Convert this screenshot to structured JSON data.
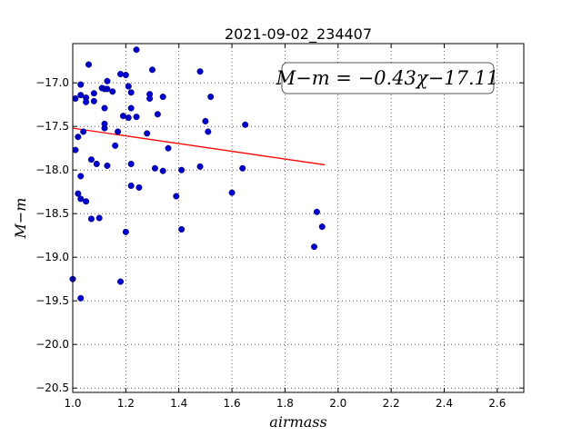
{
  "chart_data": {
    "type": "scatter",
    "title": "2021-09-02_234407",
    "xlabel": "airmass",
    "ylabel": "M−m",
    "annotation": "M−m = −0.43χ−17.11",
    "xlim": [
      1.0,
      2.7
    ],
    "ylim": [
      -20.55,
      -16.55
    ],
    "x_ticks": [
      "1.0",
      "1.2",
      "1.4",
      "1.6",
      "1.8",
      "2.0",
      "2.2",
      "2.4",
      "2.6"
    ],
    "x_tick_values": [
      1.0,
      1.2,
      1.4,
      1.6,
      1.8,
      2.0,
      2.2,
      2.4,
      2.6
    ],
    "y_ticks": [
      "−17.0",
      "−17.5",
      "−18.0",
      "−18.5",
      "−19.0",
      "−19.5",
      "−20.0",
      "−20.5"
    ],
    "y_tick_values": [
      -17.0,
      -17.5,
      -18.0,
      -18.5,
      -19.0,
      -19.5,
      -20.0,
      -20.5
    ],
    "grid": true,
    "point_color": "#0000cc",
    "fit_color": "#ff0000",
    "fit_line": {
      "x": [
        1.0,
        1.95
      ],
      "y": [
        -17.52,
        -17.94
      ]
    },
    "points": [
      {
        "x": 1.0,
        "y": -19.25
      },
      {
        "x": 1.01,
        "y": -17.18
      },
      {
        "x": 1.01,
        "y": -17.77
      },
      {
        "x": 1.02,
        "y": -17.62
      },
      {
        "x": 1.02,
        "y": -18.27
      },
      {
        "x": 1.03,
        "y": -17.02
      },
      {
        "x": 1.03,
        "y": -17.14
      },
      {
        "x": 1.03,
        "y": -18.07
      },
      {
        "x": 1.03,
        "y": -18.33
      },
      {
        "x": 1.03,
        "y": -19.47
      },
      {
        "x": 1.04,
        "y": -17.56
      },
      {
        "x": 1.05,
        "y": -17.17
      },
      {
        "x": 1.05,
        "y": -17.22
      },
      {
        "x": 1.05,
        "y": -18.36
      },
      {
        "x": 1.06,
        "y": -16.79
      },
      {
        "x": 1.07,
        "y": -17.88
      },
      {
        "x": 1.07,
        "y": -18.56
      },
      {
        "x": 1.08,
        "y": -17.21
      },
      {
        "x": 1.08,
        "y": -17.12
      },
      {
        "x": 1.09,
        "y": -17.93
      },
      {
        "x": 1.1,
        "y": -18.55
      },
      {
        "x": 1.11,
        "y": -17.06
      },
      {
        "x": 1.12,
        "y": -17.07
      },
      {
        "x": 1.12,
        "y": -17.29
      },
      {
        "x": 1.12,
        "y": -17.52
      },
      {
        "x": 1.12,
        "y": -17.47
      },
      {
        "x": 1.13,
        "y": -16.98
      },
      {
        "x": 1.13,
        "y": -17.07
      },
      {
        "x": 1.13,
        "y": -17.95
      },
      {
        "x": 1.15,
        "y": -17.1
      },
      {
        "x": 1.16,
        "y": -17.72
      },
      {
        "x": 1.17,
        "y": -17.56
      },
      {
        "x": 1.18,
        "y": -16.9
      },
      {
        "x": 1.18,
        "y": -19.28
      },
      {
        "x": 1.19,
        "y": -17.38
      },
      {
        "x": 1.2,
        "y": -16.91
      },
      {
        "x": 1.2,
        "y": -18.71
      },
      {
        "x": 1.21,
        "y": -17.4
      },
      {
        "x": 1.21,
        "y": -17.04
      },
      {
        "x": 1.22,
        "y": -17.11
      },
      {
        "x": 1.22,
        "y": -17.29
      },
      {
        "x": 1.22,
        "y": -17.93
      },
      {
        "x": 1.22,
        "y": -18.18
      },
      {
        "x": 1.24,
        "y": -17.39
      },
      {
        "x": 1.24,
        "y": -16.62
      },
      {
        "x": 1.25,
        "y": -18.2
      },
      {
        "x": 1.28,
        "y": -17.58
      },
      {
        "x": 1.29,
        "y": -17.13
      },
      {
        "x": 1.29,
        "y": -17.18
      },
      {
        "x": 1.3,
        "y": -16.85
      },
      {
        "x": 1.31,
        "y": -17.98
      },
      {
        "x": 1.32,
        "y": -17.36
      },
      {
        "x": 1.34,
        "y": -17.16
      },
      {
        "x": 1.34,
        "y": -18.01
      },
      {
        "x": 1.36,
        "y": -17.75
      },
      {
        "x": 1.39,
        "y": -18.3
      },
      {
        "x": 1.41,
        "y": -18.0
      },
      {
        "x": 1.41,
        "y": -18.68
      },
      {
        "x": 1.48,
        "y": -16.87
      },
      {
        "x": 1.48,
        "y": -17.96
      },
      {
        "x": 1.5,
        "y": -17.44
      },
      {
        "x": 1.51,
        "y": -17.56
      },
      {
        "x": 1.52,
        "y": -17.16
      },
      {
        "x": 1.6,
        "y": -18.26
      },
      {
        "x": 1.64,
        "y": -17.98
      },
      {
        "x": 1.65,
        "y": -17.48
      },
      {
        "x": 1.91,
        "y": -18.88
      },
      {
        "x": 1.92,
        "y": -18.48
      },
      {
        "x": 1.94,
        "y": -18.65
      }
    ]
  }
}
